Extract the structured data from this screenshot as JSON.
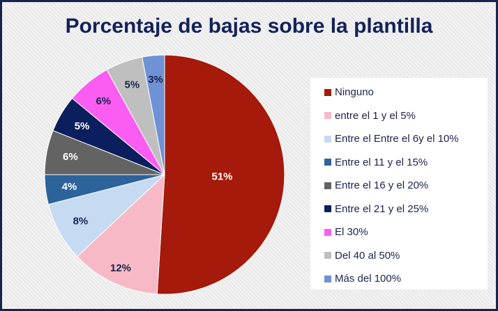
{
  "chart_data": {
    "type": "pie",
    "title": "Porcentaje de bajas sobre la plantilla",
    "legend_position": "right",
    "start": "top",
    "direction": "clockwise",
    "slices": [
      {
        "label": "Ninguno",
        "value": 51,
        "data_label": "51%",
        "color": "#a51a0a",
        "label_color": "#ffffff"
      },
      {
        "label": "entre el 1 y el 5%",
        "value": 12,
        "data_label": "12%",
        "color": "#f7b9c6",
        "label_color": "#1b2350"
      },
      {
        "label": "Entre el Entre el 6y el 10%",
        "value": 8,
        "data_label": "8%",
        "color": "#c6daf1",
        "label_color": "#1b2350"
      },
      {
        "label": "Entre el 11 y el 15%",
        "value": 4,
        "data_label": "4%",
        "color": "#2c639a",
        "label_color": "#ffffff"
      },
      {
        "label": "Entre el 16 y el 20%",
        "value": 6,
        "data_label": "6%",
        "color": "#636363",
        "label_color": "#ffffff"
      },
      {
        "label": "Entre el 21 y el 25%",
        "value": 5,
        "data_label": "5%",
        "color": "#0b1f5e",
        "label_color": "#ffffff"
      },
      {
        "label": "El 30%",
        "value": 6,
        "data_label": "6%",
        "color": "#fb5df2",
        "label_color": "#1b2350"
      },
      {
        "label": "Del 40 al 50%",
        "value": 5,
        "data_label": "5%",
        "color": "#bfbfbf",
        "label_color": "#1b2350"
      },
      {
        "label": "Más del 100%",
        "value": 3,
        "data_label": "3%",
        "color": "#6f92d4",
        "label_color": "#1b2350"
      }
    ]
  }
}
